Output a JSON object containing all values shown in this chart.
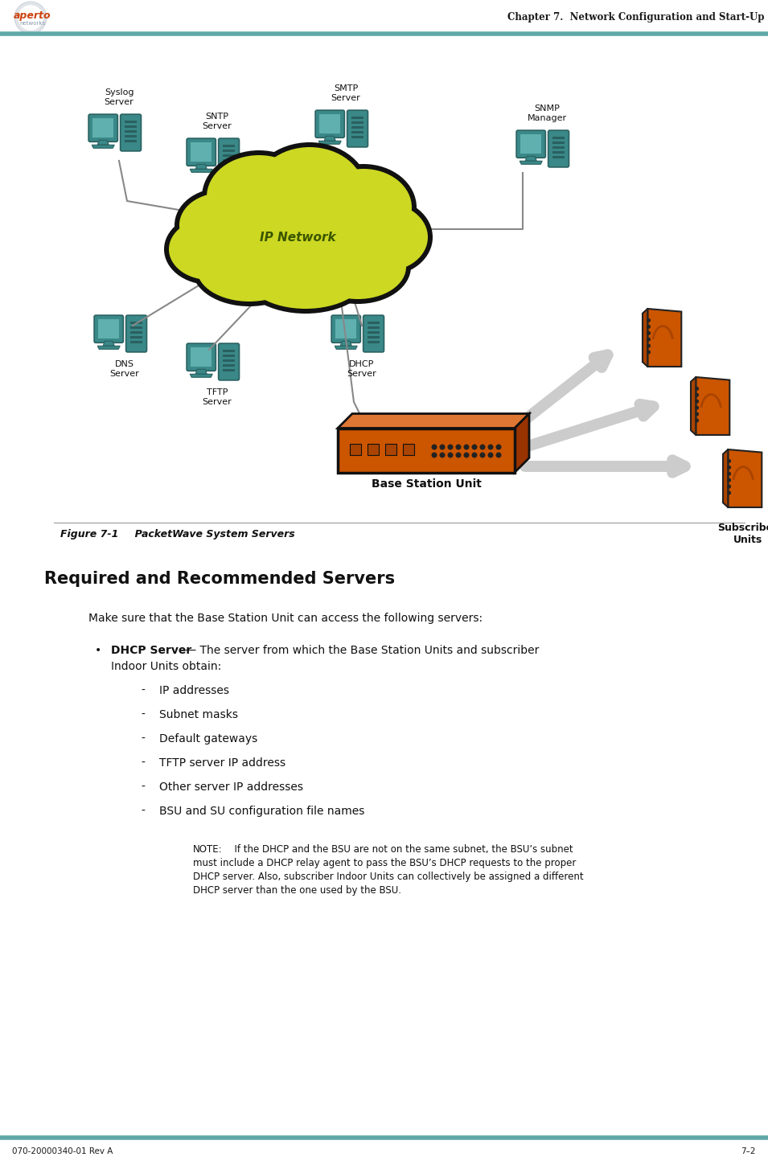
{
  "header_title": "Chapter 7.  Network Configuration and Start-Up",
  "footer_left": "070-20000340-01 Rev A",
  "footer_right": "7–2",
  "figure_caption_italic": "Figure 7-1",
  "figure_caption_rest": "       PacketWave System Servers",
  "section_title": "Required and Recommended Servers",
  "body_intro": "Make sure that the Base Station Unit can access the following servers:",
  "bullet_label": "DHCP Server",
  "bullet_rest": " — The server from which the Base Station Units and subscriber",
  "bullet_cont": "Indoor Units obtain:",
  "sub_bullets": [
    "IP addresses",
    "Subnet masks",
    "Default gateways",
    "TFTP server IP address",
    "Other server IP addresses",
    "BSU and SU configuration file names"
  ],
  "note_label": "NOTE:",
  "note_text": "  If the DHCP and the BSU are not on the same subnet, the BSU’s subnet\nmust include a DHCP relay agent to pass the BSU’s DHCP requests to the proper\nDHCP server. Also, subscriber Indoor Units can collectively be assigned a different\nDHCP server than the one used by the BSU.",
  "header_line_color": "#5fa8a8",
  "footer_line_color": "#5fa8a8",
  "bg_color": "#ffffff",
  "text_color": "#1a1a1a",
  "header_title_color": "#1a1a1a",
  "logo_orange": "#cc4411",
  "logo_gray": "#8899aa",
  "cloud_color": "#ccd822",
  "cloud_outline": "#111111",
  "server_teal": "#3a8888",
  "server_orange": "#cc5500",
  "line_color": "#888888",
  "arrow_color": "#cccccc",
  "bsu_orange": "#cc5500",
  "bsu_outline": "#111111"
}
